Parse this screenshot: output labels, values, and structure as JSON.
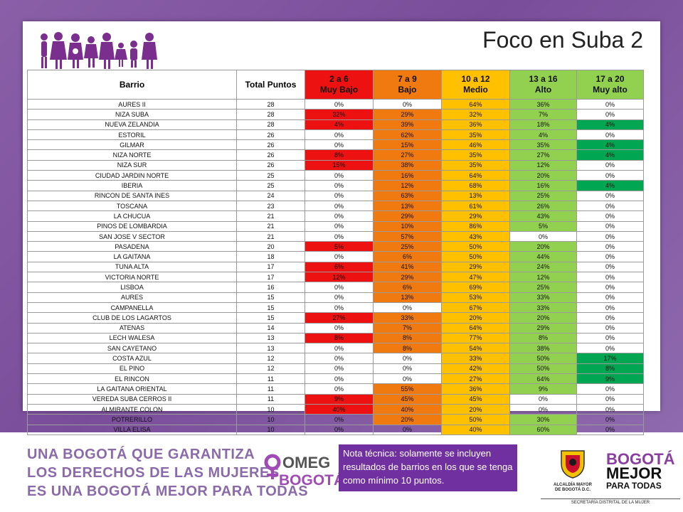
{
  "slide": {
    "title": "Foco en Suba 2"
  },
  "table": {
    "headers": {
      "barrio": "Barrio",
      "total": "Total Puntos",
      "c1_top": "2 a 6",
      "c1_bottom": "Muy Bajo",
      "c2_top": "7 a 9",
      "c2_bottom": "Bajo",
      "c3_top": "10 a 12",
      "c3_bottom": "Medio",
      "c4_top": "13 a 16",
      "c4_bottom": "Alto",
      "c5_top": "17 a 20",
      "c5_bottom": "Muy alto"
    },
    "colors": {
      "red": "#ee1111",
      "orange": "#f07a10",
      "yellow": "#ffc000",
      "light_green": "#92d050",
      "dark_green": "#00a651"
    },
    "rows": [
      {
        "barrio": "AURES II",
        "total": "28",
        "vals": [
          "0%",
          "0%",
          "64%",
          "36%",
          "0%"
        ]
      },
      {
        "barrio": "NIZA SUBA",
        "total": "28",
        "vals": [
          "32%",
          "29%",
          "32%",
          "7%",
          "0%"
        ]
      },
      {
        "barrio": "NUEVA ZELANDIA",
        "total": "28",
        "vals": [
          "4%",
          "39%",
          "36%",
          "18%",
          "4%"
        ]
      },
      {
        "barrio": "ESTORIL",
        "total": "26",
        "vals": [
          "0%",
          "62%",
          "35%",
          "4%",
          "0%"
        ]
      },
      {
        "barrio": "GILMAR",
        "total": "26",
        "vals": [
          "0%",
          "15%",
          "46%",
          "35%",
          "4%"
        ]
      },
      {
        "barrio": "NIZA NORTE",
        "total": "26",
        "vals": [
          "8%",
          "27%",
          "35%",
          "27%",
          "4%"
        ]
      },
      {
        "barrio": "NIZA SUR",
        "total": "26",
        "vals": [
          "15%",
          "38%",
          "35%",
          "12%",
          "0%"
        ]
      },
      {
        "barrio": "CIUDAD JARDIN NORTE",
        "total": "25",
        "vals": [
          "0%",
          "16%",
          "64%",
          "20%",
          "0%"
        ]
      },
      {
        "barrio": "IBERIA",
        "total": "25",
        "vals": [
          "0%",
          "12%",
          "68%",
          "16%",
          "4%"
        ]
      },
      {
        "barrio": "RINCON DE SANTA INES",
        "total": "24",
        "vals": [
          "0%",
          "63%",
          "13%",
          "25%",
          "0%"
        ]
      },
      {
        "barrio": "TOSCANA",
        "total": "23",
        "vals": [
          "0%",
          "13%",
          "61%",
          "26%",
          "0%"
        ]
      },
      {
        "barrio": "LA CHUCUA",
        "total": "21",
        "vals": [
          "0%",
          "29%",
          "29%",
          "43%",
          "0%"
        ]
      },
      {
        "barrio": "PINOS DE LOMBARDIA",
        "total": "21",
        "vals": [
          "0%",
          "10%",
          "86%",
          "5%",
          "0%"
        ]
      },
      {
        "barrio": "SAN JOSE V SECTOR",
        "total": "21",
        "vals": [
          "0%",
          "57%",
          "43%",
          "0%",
          "0%"
        ]
      },
      {
        "barrio": "PASADENA",
        "total": "20",
        "vals": [
          "5%",
          "25%",
          "50%",
          "20%",
          "0%"
        ]
      },
      {
        "barrio": "LA GAITANA",
        "total": "18",
        "vals": [
          "0%",
          "6%",
          "50%",
          "44%",
          "0%"
        ]
      },
      {
        "barrio": "TUNA ALTA",
        "total": "17",
        "vals": [
          "6%",
          "41%",
          "29%",
          "24%",
          "0%"
        ]
      },
      {
        "barrio": "VICTORIA NORTE",
        "total": "17",
        "vals": [
          "12%",
          "29%",
          "47%",
          "12%",
          "0%"
        ]
      },
      {
        "barrio": "LISBOA",
        "total": "16",
        "vals": [
          "0%",
          "6%",
          "69%",
          "25%",
          "0%"
        ]
      },
      {
        "barrio": "AURES",
        "total": "15",
        "vals": [
          "0%",
          "13%",
          "53%",
          "33%",
          "0%"
        ]
      },
      {
        "barrio": "CAMPANELLA",
        "total": "15",
        "vals": [
          "0%",
          "0%",
          "67%",
          "33%",
          "0%"
        ]
      },
      {
        "barrio": "CLUB DE LOS LAGARTOS",
        "total": "15",
        "vals": [
          "27%",
          "33%",
          "20%",
          "20%",
          "0%"
        ]
      },
      {
        "barrio": "ATENAS",
        "total": "14",
        "vals": [
          "0%",
          "7%",
          "64%",
          "29%",
          "0%"
        ]
      },
      {
        "barrio": "LECH WALESA",
        "total": "13",
        "vals": [
          "8%",
          "8%",
          "77%",
          "8%",
          "0%"
        ]
      },
      {
        "barrio": "SAN CAYETANO",
        "total": "13",
        "vals": [
          "0%",
          "8%",
          "54%",
          "38%",
          "0%"
        ]
      },
      {
        "barrio": "COSTA AZUL",
        "total": "12",
        "vals": [
          "0%",
          "0%",
          "33%",
          "50%",
          "17%"
        ]
      },
      {
        "barrio": "EL PINO",
        "total": "12",
        "vals": [
          "0%",
          "0%",
          "42%",
          "50%",
          "8%"
        ]
      },
      {
        "barrio": "EL RINCON",
        "total": "11",
        "vals": [
          "0%",
          "0%",
          "27%",
          "64%",
          "9%"
        ]
      },
      {
        "barrio": "LA GAITANA ORIENTAL",
        "total": "11",
        "vals": [
          "0%",
          "55%",
          "36%",
          "9%",
          "0%"
        ]
      },
      {
        "barrio": "VEREDA SUBA CERROS II",
        "total": "11",
        "vals": [
          "9%",
          "45%",
          "45%",
          "0%",
          "0%"
        ]
      },
      {
        "barrio": "ALMIRANTE COLON",
        "total": "10",
        "vals": [
          "40%",
          "40%",
          "20%",
          "0%",
          "0%"
        ]
      },
      {
        "barrio": "POTRERILLO",
        "total": "10",
        "vals": [
          "0%",
          "20%",
          "50%",
          "30%",
          "0%"
        ]
      },
      {
        "barrio": "VILLA ELISA",
        "total": "10",
        "vals": [
          "0%",
          "0%",
          "40%",
          "60%",
          "0%"
        ]
      }
    ]
  },
  "footer": {
    "line1": "UNA BOGOTÁ QUE GARANTIZA",
    "line2": "LOS DERECHOS DE LAS MUJERES",
    "line3": "ES UNA BOGOTÁ MEJOR PARA TODAS",
    "omeg_top": "OMEG",
    "omeg_bottom": "BOGOTÁ",
    "note": "Nota técnica: solamente se incluyen resultados de barrios en los que se tenga como mínimo 10 puntos.",
    "alcaldia_line1": "ALCALDÍA MAYOR",
    "alcaldia_line2": "DE BOGOTÁ D.C.",
    "bogota_word": "BOGOTÁ",
    "mejor_word": "MEJOR",
    "para_todas": "PARA TODAS",
    "secretaria": "SECRETARÍA DISTRITAL DE LA MUJER"
  }
}
